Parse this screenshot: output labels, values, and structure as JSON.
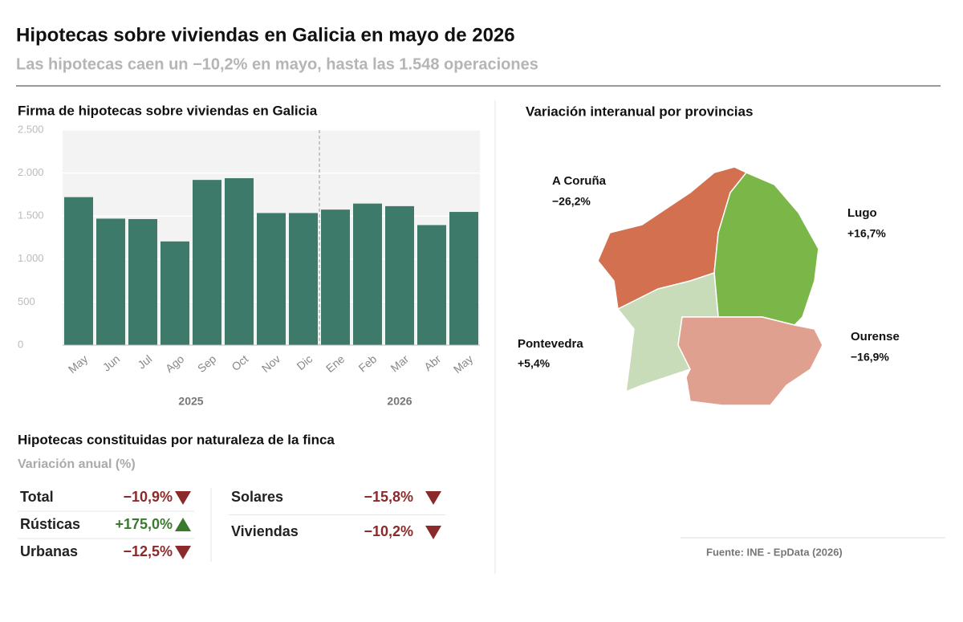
{
  "header": {
    "title": "Hipotecas sobre viviendas en Galicia en mayo de 2026",
    "subtitle": "Las hipotecas caen un −10,2% en mayo, hasta las 1.548 operaciones"
  },
  "chart_data": {
    "type": "bar",
    "title": "Firma de hipotecas sobre viviendas en Galicia",
    "categories": [
      "May",
      "Jun",
      "Jul",
      "Ago",
      "Sep",
      "Oct",
      "Nov",
      "Dic",
      "Ene",
      "Feb",
      "Mar",
      "Abr",
      "May"
    ],
    "values": [
      1720,
      1470,
      1465,
      1205,
      1920,
      1940,
      1535,
      1535,
      1575,
      1645,
      1615,
      1395,
      1548
    ],
    "year_labels": [
      "2025",
      "2026"
    ],
    "color": "#3d7a69",
    "ylim": [
      0,
      2500
    ],
    "yticks": [
      0,
      500,
      {
        "value": 1000,
        "label": "1.000"
      },
      {
        "value": 1500,
        "label": "1.500"
      },
      {
        "value": 2000,
        "label": "2.000"
      },
      {
        "value": 2500,
        "label": "2.500"
      }
    ],
    "grid": true
  },
  "map": {
    "title": "Variación interanual por provincias",
    "regions": [
      {
        "name": "A Coruña",
        "value": "−26,2%",
        "color": "#d2704f"
      },
      {
        "name": "Lugo",
        "value": "+16,7%",
        "color": "#7ab648"
      },
      {
        "name": "Pontevedra",
        "value": "+5,4%",
        "color": "#c9dcb9"
      },
      {
        "name": "Ourense",
        "value": "−16,9%",
        "color": "#e0a08f"
      }
    ]
  },
  "table": {
    "title": "Hipotecas constituidas por naturaleza de la finca",
    "subtitle": "Variación anual (%)",
    "rows": [
      {
        "label": "Total",
        "value": "−10,9%",
        "trend": "down"
      },
      {
        "label": "Rústicas",
        "value": "+175,0%",
        "trend": "up"
      },
      {
        "label": "Urbanas",
        "value": "−12,5%",
        "trend": "down"
      },
      {
        "label": "Solares",
        "value": "−15,8%",
        "trend": "down"
      },
      {
        "label": "Viviendas",
        "value": "−10,2%",
        "trend": "down"
      }
    ]
  },
  "source": "Fuente: INE - EpData (2026)"
}
